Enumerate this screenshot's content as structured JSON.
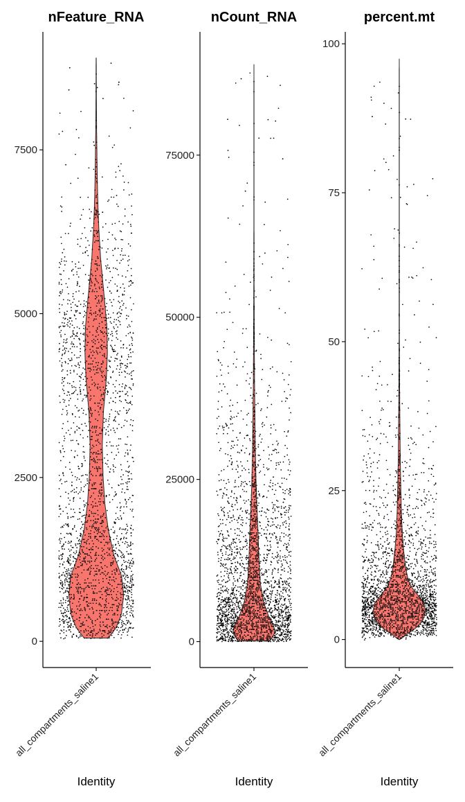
{
  "colors": {
    "violin_fill": "#F8766D",
    "violin_stroke": "#2b2b2b",
    "point": "#000000",
    "axis": "#000000"
  },
  "chart_data": [
    {
      "type": "violin",
      "title": "nFeature_RNA",
      "xlabel": "Identity",
      "ylabel": "",
      "categories": [
        "all_compartments_saline1"
      ],
      "ylim": [
        -400,
        9300
      ],
      "yticks": [
        0,
        2500,
        5000,
        7500
      ],
      "ytick_labels": [
        "0",
        "2500",
        "5000",
        "7500"
      ],
      "data_range": [
        50,
        8900
      ],
      "density_profile": [
        [
          50,
          0.42
        ],
        [
          200,
          0.68
        ],
        [
          400,
          0.87
        ],
        [
          700,
          0.95
        ],
        [
          1000,
          0.88
        ],
        [
          1300,
          0.62
        ],
        [
          1700,
          0.42
        ],
        [
          2100,
          0.3
        ],
        [
          2500,
          0.24
        ],
        [
          3000,
          0.21
        ],
        [
          3500,
          0.25
        ],
        [
          4000,
          0.35
        ],
        [
          4400,
          0.39
        ],
        [
          4800,
          0.37
        ],
        [
          5300,
          0.27
        ],
        [
          5800,
          0.16
        ],
        [
          6300,
          0.09
        ],
        [
          6800,
          0.05
        ],
        [
          7300,
          0.03
        ],
        [
          7800,
          0.015
        ],
        [
          8300,
          0.008
        ],
        [
          8900,
          0.003
        ]
      ],
      "grid": false,
      "legend": "none"
    },
    {
      "type": "violin",
      "title": "nCount_RNA",
      "xlabel": "Identity",
      "ylabel": "",
      "categories": [
        "all_compartments_saline1"
      ],
      "ylim": [
        -4000,
        94000
      ],
      "yticks": [
        0,
        25000,
        50000,
        75000
      ],
      "ytick_labels": [
        "0",
        "25000",
        "50000",
        "75000"
      ],
      "data_range": [
        100,
        89000
      ],
      "density_profile": [
        [
          100,
          0.55
        ],
        [
          1000,
          0.7
        ],
        [
          2000,
          0.72
        ],
        [
          3000,
          0.62
        ],
        [
          4000,
          0.5
        ],
        [
          6000,
          0.34
        ],
        [
          9000,
          0.22
        ],
        [
          13000,
          0.17
        ],
        [
          17000,
          0.14
        ],
        [
          21000,
          0.1
        ],
        [
          25000,
          0.07
        ],
        [
          29000,
          0.05
        ],
        [
          34000,
          0.035
        ],
        [
          40000,
          0.02
        ],
        [
          47000,
          0.012
        ],
        [
          55000,
          0.006
        ],
        [
          65000,
          0.003
        ],
        [
          75000,
          0.002
        ],
        [
          89000,
          0.001
        ]
      ],
      "grid": false,
      "legend": "none"
    },
    {
      "type": "violin",
      "title": "percent.mt",
      "xlabel": "Identity",
      "ylabel": "",
      "categories": [
        "all_compartments_saline1"
      ],
      "ylim": [
        -4.7,
        102
      ],
      "yticks": [
        0,
        25,
        50,
        75,
        100
      ],
      "ytick_labels": [
        "0",
        "25",
        "50",
        "75",
        "100"
      ],
      "data_range": [
        0,
        97.5
      ],
      "density_profile": [
        [
          0,
          0.02
        ],
        [
          1,
          0.3
        ],
        [
          2,
          0.6
        ],
        [
          3,
          0.78
        ],
        [
          4,
          0.88
        ],
        [
          5,
          0.9
        ],
        [
          6,
          0.86
        ],
        [
          7,
          0.72
        ],
        [
          8,
          0.55
        ],
        [
          9,
          0.4
        ],
        [
          10,
          0.31
        ],
        [
          12,
          0.22
        ],
        [
          15,
          0.15
        ],
        [
          18,
          0.1
        ],
        [
          22,
          0.07
        ],
        [
          26,
          0.05
        ],
        [
          30,
          0.035
        ],
        [
          35,
          0.025
        ],
        [
          40,
          0.015
        ],
        [
          45,
          0.01
        ],
        [
          50,
          0.006
        ],
        [
          60,
          0.004
        ],
        [
          75,
          0.003
        ],
        [
          90,
          0.002
        ],
        [
          97.5,
          0.001
        ]
      ],
      "grid": false,
      "legend": "none"
    }
  ]
}
